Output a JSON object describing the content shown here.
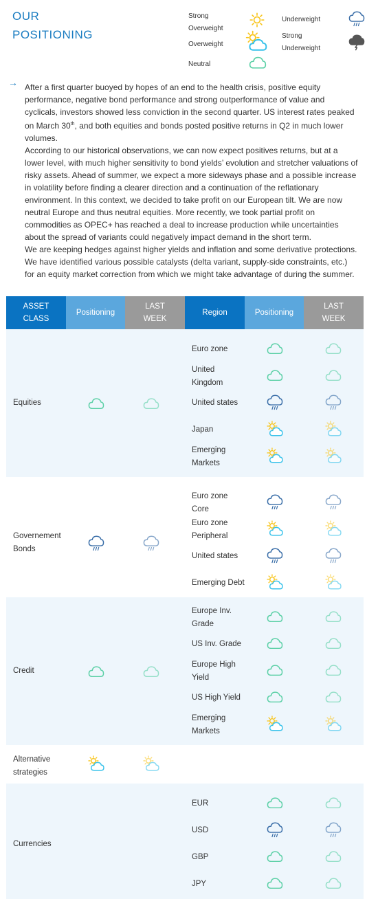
{
  "title": [
    "OUR",
    "POSITIONING"
  ],
  "legend": {
    "strong_overweight": [
      "Strong",
      "Overweight"
    ],
    "overweight": "Overweight",
    "neutral": "Neutral",
    "underweight": "Underweight",
    "strong_underweight": [
      "Strong",
      "Underweight"
    ],
    "icons": {
      "strong_overweight": "sun-icon",
      "overweight": "sun-cloud-icon",
      "neutral": "cloud-icon",
      "underweight": "rain-cloud-icon",
      "strong_underweight": "storm-cloud-icon"
    }
  },
  "intro": {
    "arrow": "→",
    "p1_a": "After a first quarter buoyed by hopes of an end to the health crisis, positive equity performance, negative bond performance and strong outperformance of value and cyclicals, investors showed less conviction in the second quarter. US interest rates peaked on March 30",
    "p1_sup": "th",
    "p1_b": ", and both equities and bonds posted positive returns in Q2 in much lower volumes.",
    "p2": "According to our historical observations, we can now expect positives returns, but at a lower level, with much higher sensitivity to bond yields’ evolution and stretcher valuations of risky assets. Ahead of summer, we expect a more sideways phase and a possible increase in volatility before finding a clearer direction and a continuation of the reflationary environment. In this context, we decided to take profit on our European tilt. We are now neutral Europe and thus neutral equities. More recently, we took partial profit on commodities as OPEC+ has reached a deal to increase production while uncertainties about the spread of variants could negatively impact demand in the short term.",
    "p3": "We are keeping hedges against higher yields and inflation and some derivative protections. We have identified various possible catalysts (delta variant, supply-side constraints, etc.) for an equity market correction from which we might take advantage of during the summer."
  },
  "table": {
    "headers": [
      [
        "ASSET",
        "CLASS"
      ],
      [
        "Positioning"
      ],
      [
        "LAST",
        "WEEK"
      ],
      [
        "Region"
      ],
      [
        "Positioning"
      ],
      [
        "LAST",
        "WEEK"
      ]
    ],
    "colors": {
      "header_dark": "#0a73c2",
      "header_mid": "#5ba7dd",
      "header_grey": "#9a9a9a",
      "band": "#eef6fc",
      "neutral_icon": "#5bd0a6",
      "underweight_icon": "#3a6ea8",
      "overweight_icon": "#37c1ea",
      "sun": "#f8c51c"
    },
    "groups": [
      {
        "asset_class": [
          "Equities"
        ],
        "positioning": "neutral",
        "last_week": "neutral",
        "regions": [
          {
            "name": [
              "Euro zone"
            ],
            "positioning": "neutral",
            "last_week": "neutral"
          },
          {
            "name": [
              "United",
              "Kingdom"
            ],
            "positioning": "neutral",
            "last_week": "neutral"
          },
          {
            "name": [
              "United states"
            ],
            "positioning": "underweight",
            "last_week": "underweight"
          },
          {
            "name": [
              "Japan"
            ],
            "positioning": "overweight",
            "last_week": "overweight"
          },
          {
            "name": [
              "Emerging",
              "Markets"
            ],
            "positioning": "overweight",
            "last_week": "overweight"
          }
        ]
      },
      {
        "asset_class": [
          "Governement",
          "Bonds"
        ],
        "positioning": "underweight",
        "last_week": "underweight",
        "regions": [
          {
            "name": [
              "Euro zone",
              "Core"
            ],
            "positioning": "underweight",
            "last_week": "underweight"
          },
          {
            "name": [
              "Euro zone",
              "Peripheral"
            ],
            "positioning": "overweight",
            "last_week": "overweight"
          },
          {
            "name": [
              "United states"
            ],
            "positioning": "underweight",
            "last_week": "underweight"
          },
          {
            "name": [
              "Emerging Debt"
            ],
            "positioning": "overweight",
            "last_week": "overweight"
          }
        ]
      },
      {
        "asset_class": [
          "Credit"
        ],
        "positioning": "neutral",
        "last_week": "neutral",
        "regions": [
          {
            "name": [
              "Europe Inv.",
              "Grade"
            ],
            "positioning": "neutral",
            "last_week": "neutral"
          },
          {
            "name": [
              "US Inv. Grade"
            ],
            "positioning": "neutral",
            "last_week": "neutral"
          },
          {
            "name": [
              "Europe High",
              "Yield"
            ],
            "positioning": "neutral",
            "last_week": "neutral"
          },
          {
            "name": [
              "US High Yield"
            ],
            "positioning": "neutral",
            "last_week": "neutral"
          },
          {
            "name": [
              "Emerging",
              "Markets"
            ],
            "positioning": "overweight",
            "last_week": "overweight"
          }
        ]
      },
      {
        "asset_class": [
          "Alternative",
          "strategies"
        ],
        "positioning": "overweight",
        "last_week": "overweight",
        "regions": []
      },
      {
        "asset_class": [
          "Currencies"
        ],
        "positioning": null,
        "last_week": null,
        "regions": [
          {
            "name": [
              "EUR"
            ],
            "positioning": "neutral",
            "last_week": "neutral"
          },
          {
            "name": [
              "USD"
            ],
            "positioning": "underweight",
            "last_week": "underweight"
          },
          {
            "name": [
              "GBP"
            ],
            "positioning": "neutral",
            "last_week": "neutral"
          },
          {
            "name": [
              "JPY"
            ],
            "positioning": "neutral",
            "last_week": "neutral"
          }
        ]
      }
    ]
  }
}
